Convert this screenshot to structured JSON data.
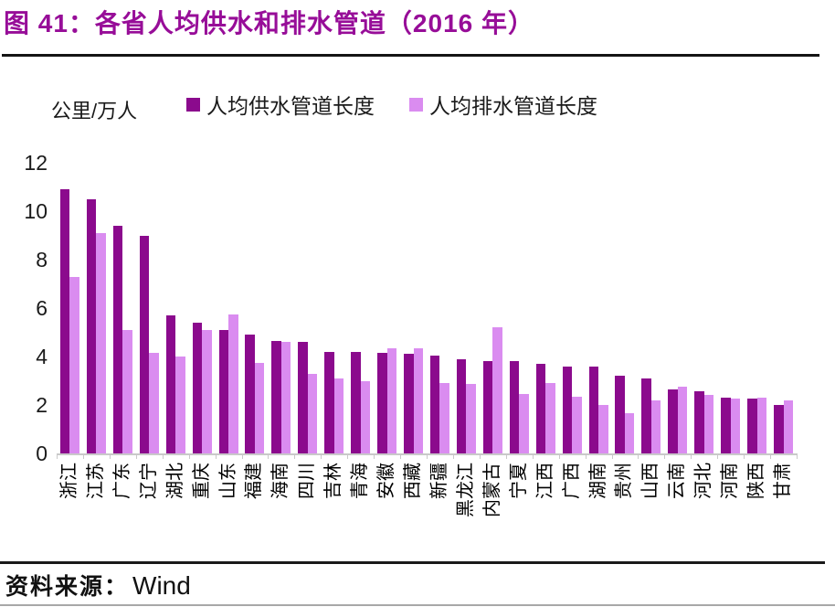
{
  "header": {
    "title": "图 41：各省人均供水和排水管道（2016 年）"
  },
  "colors": {
    "title_accent": "#970d98",
    "supply_bar": "#8b0a8d",
    "drainage_bar": "#da8cf0",
    "axis_gray": "#c9c9c9",
    "rule_black": "#141414"
  },
  "chart_data": {
    "type": "bar",
    "title": "各省人均供水和排水管道（2016 年）",
    "unit_label": "公里/万人",
    "xlabel": "",
    "ylabel": "公里/万人",
    "ylim": [
      0,
      12
    ],
    "yticks": [
      0,
      2,
      4,
      6,
      8,
      10,
      12
    ],
    "grid": false,
    "legend_position": "top",
    "categories": [
      "浙江",
      "江苏",
      "广东",
      "辽宁",
      "湖北",
      "重庆",
      "山东",
      "福建",
      "海南",
      "四川",
      "吉林",
      "青海",
      "安徽",
      "西藏",
      "新疆",
      "黑龙江",
      "内蒙古",
      "宁夏",
      "江西",
      "广西",
      "湖南",
      "贵州",
      "山西",
      "云南",
      "河北",
      "河南",
      "陕西",
      "甘肃"
    ],
    "series": [
      {
        "name": "人均供水管道长度",
        "color": "#8b0a8d",
        "values": [
          10.9,
          10.5,
          9.4,
          9.0,
          5.7,
          5.4,
          5.1,
          4.9,
          4.65,
          4.6,
          4.2,
          4.2,
          4.15,
          4.1,
          4.05,
          3.9,
          3.8,
          3.8,
          3.7,
          3.6,
          3.6,
          3.2,
          3.1,
          2.65,
          2.55,
          2.3,
          2.25,
          2.0
        ]
      },
      {
        "name": "人均排水管道长度",
        "color": "#da8cf0",
        "values": [
          7.3,
          9.1,
          5.1,
          4.15,
          4.0,
          5.1,
          5.75,
          3.75,
          4.6,
          3.3,
          3.1,
          3.0,
          4.35,
          4.35,
          2.9,
          2.85,
          5.2,
          2.45,
          2.9,
          2.35,
          2.0,
          1.65,
          2.2,
          2.75,
          2.4,
          2.25,
          2.3,
          2.2
        ]
      }
    ]
  },
  "footer": {
    "source_label": "资料来源：",
    "source_value": "Wind"
  }
}
